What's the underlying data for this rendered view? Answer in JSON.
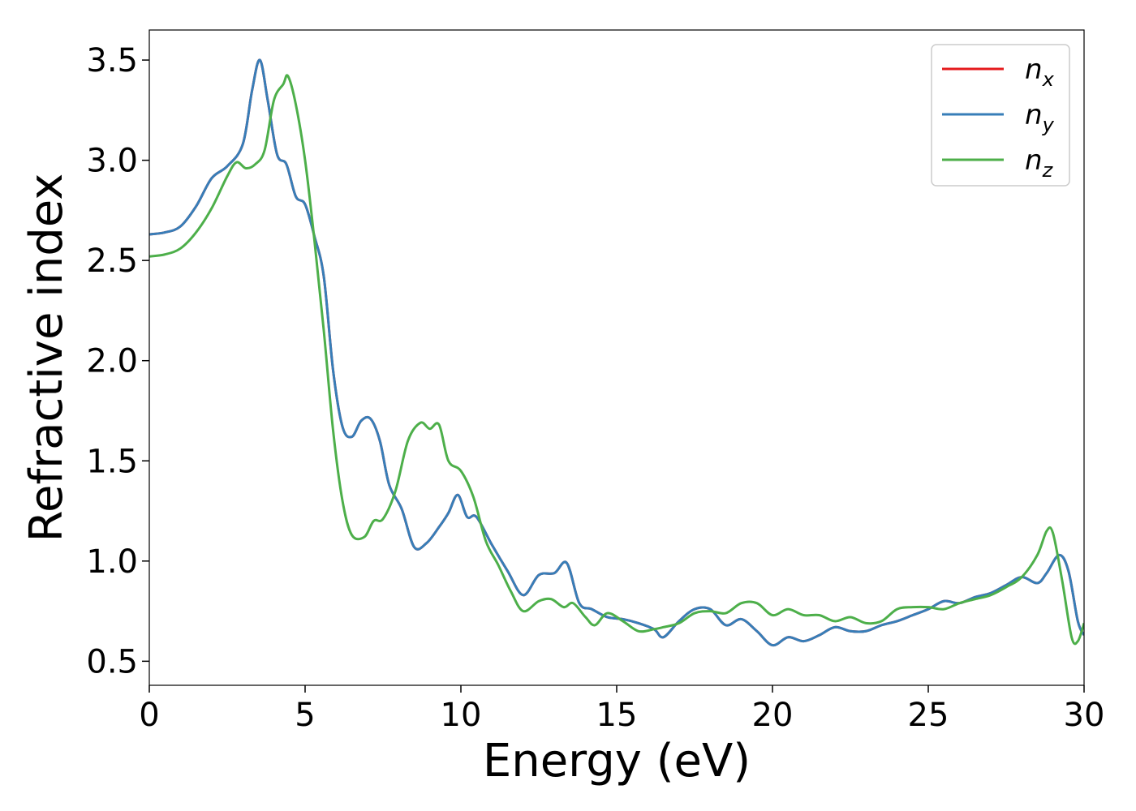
{
  "chart_data": {
    "type": "line",
    "xlabel": "Energy (eV)",
    "ylabel": "Refractive index",
    "xlim": [
      0,
      30
    ],
    "ylim": [
      0.38,
      3.65
    ],
    "xticks": [
      "0",
      "5",
      "10",
      "15",
      "20",
      "25",
      "30"
    ],
    "yticks": [
      "0.5",
      "1.0",
      "1.5",
      "2.0",
      "2.5",
      "3.0",
      "3.5"
    ],
    "grid": false,
    "legend_position": "top-right",
    "series": [
      {
        "name": "n",
        "subscript": "x",
        "color": "#e41a1c",
        "points": [
          [
            0,
            2.63
          ],
          [
            0.5,
            2.64
          ],
          [
            1,
            2.67
          ],
          [
            1.5,
            2.77
          ],
          [
            2,
            2.91
          ],
          [
            2.5,
            2.97
          ],
          [
            3,
            3.08
          ],
          [
            3.3,
            3.35
          ],
          [
            3.55,
            3.5
          ],
          [
            3.8,
            3.3
          ],
          [
            4.1,
            3.03
          ],
          [
            4.4,
            2.98
          ],
          [
            4.7,
            2.82
          ],
          [
            5,
            2.78
          ],
          [
            5.3,
            2.62
          ],
          [
            5.6,
            2.42
          ],
          [
            5.9,
            1.95
          ],
          [
            6.2,
            1.67
          ],
          [
            6.5,
            1.62
          ],
          [
            6.8,
            1.7
          ],
          [
            7.1,
            1.71
          ],
          [
            7.4,
            1.6
          ],
          [
            7.7,
            1.38
          ],
          [
            8.1,
            1.26
          ],
          [
            8.5,
            1.07
          ],
          [
            8.9,
            1.09
          ],
          [
            9.3,
            1.17
          ],
          [
            9.6,
            1.24
          ],
          [
            9.9,
            1.33
          ],
          [
            10.2,
            1.22
          ],
          [
            10.5,
            1.22
          ],
          [
            11,
            1.08
          ],
          [
            11.5,
            0.95
          ],
          [
            12,
            0.83
          ],
          [
            12.5,
            0.93
          ],
          [
            13,
            0.94
          ],
          [
            13.4,
            0.99
          ],
          [
            13.8,
            0.79
          ],
          [
            14.2,
            0.76
          ],
          [
            14.7,
            0.72
          ],
          [
            15.2,
            0.71
          ],
          [
            15.7,
            0.69
          ],
          [
            16.2,
            0.66
          ],
          [
            16.5,
            0.62
          ],
          [
            17,
            0.7
          ],
          [
            17.5,
            0.76
          ],
          [
            18,
            0.76
          ],
          [
            18.5,
            0.68
          ],
          [
            19,
            0.71
          ],
          [
            19.5,
            0.65
          ],
          [
            20,
            0.58
          ],
          [
            20.5,
            0.62
          ],
          [
            21,
            0.6
          ],
          [
            21.5,
            0.63
          ],
          [
            22,
            0.67
          ],
          [
            22.5,
            0.65
          ],
          [
            23,
            0.65
          ],
          [
            23.5,
            0.68
          ],
          [
            24,
            0.7
          ],
          [
            24.5,
            0.73
          ],
          [
            25,
            0.76
          ],
          [
            25.5,
            0.8
          ],
          [
            26,
            0.79
          ],
          [
            26.5,
            0.82
          ],
          [
            27,
            0.84
          ],
          [
            27.5,
            0.88
          ],
          [
            28,
            0.92
          ],
          [
            28.5,
            0.89
          ],
          [
            28.8,
            0.94
          ],
          [
            29.2,
            1.03
          ],
          [
            29.5,
            0.95
          ],
          [
            29.8,
            0.7
          ],
          [
            30,
            0.63
          ]
        ]
      },
      {
        "name": "n",
        "subscript": "y",
        "color": "#377eb8",
        "points": [
          [
            0,
            2.63
          ],
          [
            0.5,
            2.64
          ],
          [
            1,
            2.67
          ],
          [
            1.5,
            2.77
          ],
          [
            2,
            2.91
          ],
          [
            2.5,
            2.97
          ],
          [
            3,
            3.08
          ],
          [
            3.3,
            3.35
          ],
          [
            3.55,
            3.5
          ],
          [
            3.8,
            3.3
          ],
          [
            4.1,
            3.03
          ],
          [
            4.4,
            2.98
          ],
          [
            4.7,
            2.82
          ],
          [
            5,
            2.78
          ],
          [
            5.3,
            2.62
          ],
          [
            5.6,
            2.42
          ],
          [
            5.9,
            1.95
          ],
          [
            6.2,
            1.67
          ],
          [
            6.5,
            1.62
          ],
          [
            6.8,
            1.7
          ],
          [
            7.1,
            1.71
          ],
          [
            7.4,
            1.6
          ],
          [
            7.7,
            1.38
          ],
          [
            8.1,
            1.26
          ],
          [
            8.5,
            1.07
          ],
          [
            8.9,
            1.09
          ],
          [
            9.3,
            1.17
          ],
          [
            9.6,
            1.24
          ],
          [
            9.9,
            1.33
          ],
          [
            10.2,
            1.22
          ],
          [
            10.5,
            1.22
          ],
          [
            11,
            1.08
          ],
          [
            11.5,
            0.95
          ],
          [
            12,
            0.83
          ],
          [
            12.5,
            0.93
          ],
          [
            13,
            0.94
          ],
          [
            13.4,
            0.99
          ],
          [
            13.8,
            0.79
          ],
          [
            14.2,
            0.76
          ],
          [
            14.7,
            0.72
          ],
          [
            15.2,
            0.71
          ],
          [
            15.7,
            0.69
          ],
          [
            16.2,
            0.66
          ],
          [
            16.5,
            0.62
          ],
          [
            17,
            0.7
          ],
          [
            17.5,
            0.76
          ],
          [
            18,
            0.76
          ],
          [
            18.5,
            0.68
          ],
          [
            19,
            0.71
          ],
          [
            19.5,
            0.65
          ],
          [
            20,
            0.58
          ],
          [
            20.5,
            0.62
          ],
          [
            21,
            0.6
          ],
          [
            21.5,
            0.63
          ],
          [
            22,
            0.67
          ],
          [
            22.5,
            0.65
          ],
          [
            23,
            0.65
          ],
          [
            23.5,
            0.68
          ],
          [
            24,
            0.7
          ],
          [
            24.5,
            0.73
          ],
          [
            25,
            0.76
          ],
          [
            25.5,
            0.8
          ],
          [
            26,
            0.79
          ],
          [
            26.5,
            0.82
          ],
          [
            27,
            0.84
          ],
          [
            27.5,
            0.88
          ],
          [
            28,
            0.92
          ],
          [
            28.5,
            0.89
          ],
          [
            28.8,
            0.94
          ],
          [
            29.2,
            1.03
          ],
          [
            29.5,
            0.95
          ],
          [
            29.8,
            0.7
          ],
          [
            30,
            0.63
          ]
        ]
      },
      {
        "name": "n",
        "subscript": "z",
        "color": "#4daf4a",
        "points": [
          [
            0,
            2.52
          ],
          [
            0.5,
            2.53
          ],
          [
            1,
            2.56
          ],
          [
            1.5,
            2.64
          ],
          [
            2,
            2.76
          ],
          [
            2.5,
            2.92
          ],
          [
            2.8,
            2.99
          ],
          [
            3.1,
            2.96
          ],
          [
            3.4,
            2.98
          ],
          [
            3.7,
            3.05
          ],
          [
            4,
            3.3
          ],
          [
            4.3,
            3.38
          ],
          [
            4.45,
            3.42
          ],
          [
            4.7,
            3.28
          ],
          [
            5,
            3.0
          ],
          [
            5.3,
            2.6
          ],
          [
            5.6,
            2.15
          ],
          [
            5.9,
            1.65
          ],
          [
            6.2,
            1.3
          ],
          [
            6.5,
            1.13
          ],
          [
            6.9,
            1.12
          ],
          [
            7.2,
            1.2
          ],
          [
            7.5,
            1.21
          ],
          [
            7.9,
            1.35
          ],
          [
            8.3,
            1.6
          ],
          [
            8.7,
            1.69
          ],
          [
            9,
            1.66
          ],
          [
            9.3,
            1.68
          ],
          [
            9.6,
            1.5
          ],
          [
            10,
            1.45
          ],
          [
            10.4,
            1.32
          ],
          [
            10.8,
            1.1
          ],
          [
            11.2,
            0.98
          ],
          [
            11.6,
            0.85
          ],
          [
            12,
            0.75
          ],
          [
            12.5,
            0.8
          ],
          [
            12.9,
            0.81
          ],
          [
            13.3,
            0.77
          ],
          [
            13.6,
            0.79
          ],
          [
            14,
            0.72
          ],
          [
            14.3,
            0.68
          ],
          [
            14.7,
            0.74
          ],
          [
            15.2,
            0.7
          ],
          [
            15.7,
            0.65
          ],
          [
            16.2,
            0.66
          ],
          [
            16.5,
            0.67
          ],
          [
            17,
            0.69
          ],
          [
            17.5,
            0.74
          ],
          [
            18,
            0.75
          ],
          [
            18.5,
            0.74
          ],
          [
            19,
            0.79
          ],
          [
            19.5,
            0.79
          ],
          [
            20,
            0.73
          ],
          [
            20.5,
            0.76
          ],
          [
            21,
            0.73
          ],
          [
            21.5,
            0.73
          ],
          [
            22,
            0.7
          ],
          [
            22.5,
            0.72
          ],
          [
            23,
            0.69
          ],
          [
            23.5,
            0.7
          ],
          [
            24,
            0.76
          ],
          [
            24.5,
            0.77
          ],
          [
            25,
            0.77
          ],
          [
            25.5,
            0.76
          ],
          [
            26,
            0.79
          ],
          [
            26.5,
            0.81
          ],
          [
            27,
            0.83
          ],
          [
            27.5,
            0.87
          ],
          [
            28,
            0.92
          ],
          [
            28.5,
            1.03
          ],
          [
            28.8,
            1.15
          ],
          [
            29,
            1.14
          ],
          [
            29.3,
            0.9
          ],
          [
            29.6,
            0.62
          ],
          [
            29.8,
            0.6
          ],
          [
            30,
            0.69
          ]
        ]
      }
    ]
  }
}
